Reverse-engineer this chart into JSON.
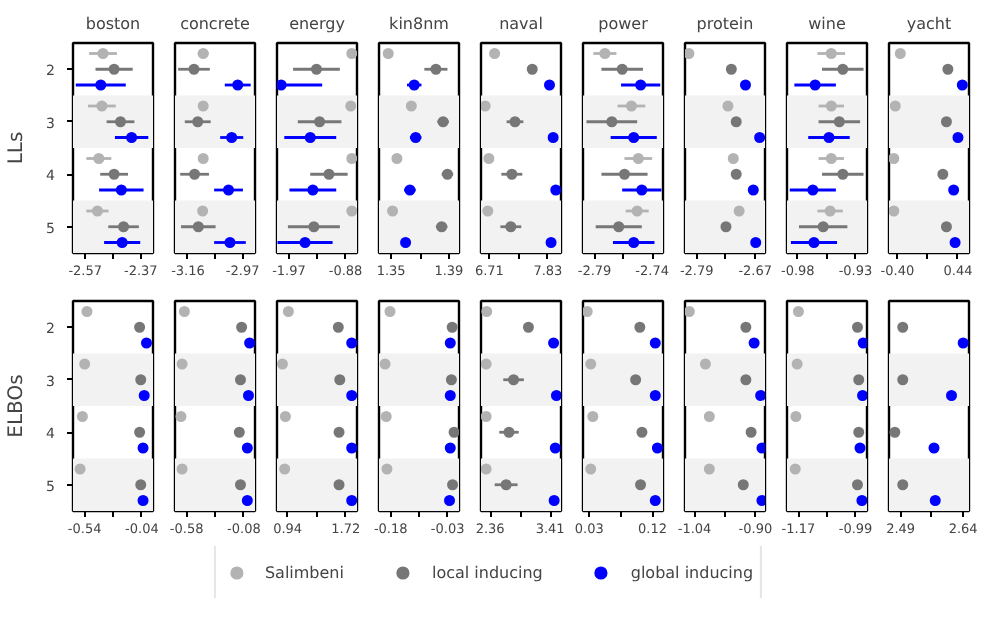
{
  "chart_data": [
    {
      "type": "scatter",
      "title": "boston",
      "ylabel": "LLs",
      "orientation": "horizontal",
      "categories": [
        "2",
        "3",
        "4",
        "5"
      ],
      "xlim": [
        -2.614,
        -2.326
      ],
      "xticks": [
        -2.57,
        {
          "value": -2.47,
          "label": null
        },
        -2.37
      ],
      "marker": "circle",
      "grid": false,
      "legend": "bottom",
      "bands": [
        {
          "axis": "y",
          "from": "3",
          "to": "3",
          "color": "#f2f2f2"
        },
        {
          "axis": "y",
          "from": "5",
          "to": "5",
          "color": "#f2f2f2"
        }
      ],
      "series": [
        {
          "name": "Salimbeni",
          "color": "#b3b3b3",
          "values": [
            -2.506,
            -2.51,
            -2.521,
            -2.526
          ],
          "errors": [
            0.05,
            0.05,
            0.045,
            0.04
          ]
        },
        {
          "name": "local inducing",
          "color": "#777777",
          "values": [
            -2.466,
            -2.443,
            -2.466,
            -2.432
          ],
          "errors": [
            0.067,
            0.05,
            0.05,
            0.055
          ]
        },
        {
          "name": "global inducing",
          "color": "#0000ff",
          "values": [
            -2.514,
            -2.403,
            -2.44,
            -2.437
          ],
          "errors": [
            0.09,
            0.06,
            0.08,
            0.065
          ]
        }
      ]
    },
    {
      "type": "scatter",
      "title": "concrete",
      "orientation": "horizontal",
      "categories": [
        "2",
        "3",
        "4",
        "5"
      ],
      "tick_labels": "x",
      "xlim": [
        -3.205,
        -2.927
      ],
      "xticks": [
        -3.16,
        {
          "value": -3.065,
          "label": null
        },
        -2.97
      ],
      "marker": "circle",
      "grid": false,
      "bands": [
        {
          "axis": "y",
          "from": "3",
          "to": "3",
          "color": "#f2f2f2"
        },
        {
          "axis": "y",
          "from": "5",
          "to": "5",
          "color": "#f2f2f2"
        }
      ],
      "series": [
        {
          "color": "#b3b3b3",
          "values": [
            -3.107,
            -3.107,
            -3.107,
            -3.109
          ],
          "errors": [
            0.019,
            null,
            null,
            null
          ]
        },
        {
          "color": "#777777",
          "values": [
            -3.139,
            -3.126,
            -3.137,
            -3.124
          ],
          "errors": [
            0.055,
            0.045,
            0.05,
            0.06
          ]
        },
        {
          "color": "#0000ff",
          "values": [
            -2.987,
            -3.008,
            -3.019,
            -3.014
          ],
          "errors": [
            0.045,
            0.04,
            0.05,
            0.055
          ]
        }
      ]
    },
    {
      "type": "scatter",
      "title": "energy",
      "orientation": "horizontal",
      "categories": [
        "2",
        "3",
        "4",
        "5"
      ],
      "tick_labels": "x",
      "xlim": [
        -2.2,
        -0.66
      ],
      "xticks": [
        -1.97,
        {
          "value": -1.425,
          "label": null
        },
        -0.88
      ],
      "marker": "circle",
      "grid": false,
      "bands": [
        {
          "axis": "y",
          "from": "3",
          "to": "3",
          "color": "#f2f2f2"
        },
        {
          "axis": "y",
          "from": "5",
          "to": "5",
          "color": "#f2f2f2"
        }
      ],
      "series": [
        {
          "color": "#b3b3b3",
          "values": [
            -0.76,
            -0.78,
            -0.76,
            -0.76
          ]
        },
        {
          "color": "#777777",
          "values": [
            -1.44,
            -1.38,
            -1.2,
            -1.49
          ],
          "errors": [
            0.45,
            0.42,
            0.36,
            0.5
          ]
        },
        {
          "color": "#0000ff",
          "values": [
            -2.12,
            -1.56,
            -1.51,
            -1.66
          ],
          "errors": [
            [
              -2.2,
              -1.33
            ],
            0.5,
            0.45,
            0.53
          ]
        }
      ]
    },
    {
      "type": "scatter",
      "title": "kin8nm",
      "orientation": "horizontal",
      "categories": [
        "2",
        "3",
        "4",
        "5"
      ],
      "tick_labels": "x",
      "xlim": [
        1.3416,
        1.397
      ],
      "xticks": [
        1.35,
        {
          "value": 1.37,
          "label": null
        },
        1.39
      ],
      "marker": "circle",
      "grid": false,
      "bands": [
        {
          "axis": "y",
          "from": "3",
          "to": "3",
          "color": "#f2f2f2"
        },
        {
          "axis": "y",
          "from": "5",
          "to": "5",
          "color": "#f2f2f2"
        }
      ],
      "series": [
        {
          "color": "#b3b3b3",
          "values": [
            1.348,
            1.364,
            1.354,
            1.351
          ],
          "errors": [
            null,
            0.003,
            0.003,
            0.002
          ]
        },
        {
          "color": "#777777",
          "values": [
            1.381,
            1.386,
            1.389,
            1.385
          ],
          "errors": [
            0.008,
            0.004,
            0.004,
            0.004
          ]
        },
        {
          "color": "#0000ff",
          "values": [
            1.366,
            1.367,
            1.363,
            1.36
          ],
          "errors": [
            0.005,
            0.004,
            0.004,
            0.003
          ]
        }
      ]
    },
    {
      "type": "scatter",
      "title": "naval",
      "orientation": "horizontal",
      "categories": [
        "2",
        "3",
        "4",
        "5"
      ],
      "tick_labels": "x",
      "xlim": [
        6.55,
        8.08
      ],
      "xticks": [
        6.71,
        {
          "value": 7.27,
          "label": null
        },
        7.83
      ],
      "marker": "circle",
      "grid": false,
      "bands": [
        {
          "axis": "y",
          "from": "3",
          "to": "3",
          "color": "#f2f2f2"
        },
        {
          "axis": "y",
          "from": "5",
          "to": "5",
          "color": "#f2f2f2"
        }
      ],
      "series": [
        {
          "color": "#b3b3b3",
          "values": [
            6.81,
            6.63,
            6.7,
            6.68
          ]
        },
        {
          "color": "#777777",
          "values": [
            7.53,
            7.2,
            7.14,
            7.12
          ],
          "errors": [
            null,
            0.16,
            0.2,
            0.2
          ]
        },
        {
          "color": "#0000ff",
          "values": [
            7.86,
            7.93,
            7.98,
            7.89
          ]
        }
      ]
    },
    {
      "type": "scatter",
      "title": "power",
      "orientation": "horizontal",
      "categories": [
        "2",
        "3",
        "4",
        "5"
      ],
      "tick_labels": "x",
      "xlim": [
        -2.8,
        -2.7306
      ],
      "xticks": [
        -2.79,
        {
          "value": -2.765,
          "label": null
        },
        -2.74
      ],
      "marker": "circle",
      "grid": false,
      "bands": [
        {
          "axis": "y",
          "from": "3",
          "to": "3",
          "color": "#f2f2f2"
        },
        {
          "axis": "y",
          "from": "5",
          "to": "5",
          "color": "#f2f2f2"
        }
      ],
      "series": [
        {
          "color": "#b3b3b3",
          "values": [
            -2.781,
            -2.758,
            -2.752,
            -2.753
          ],
          "errors": [
            0.01,
            0.012,
            0.012,
            0.01
          ]
        },
        {
          "color": "#777777",
          "values": [
            -2.766,
            -2.775,
            -2.764,
            -2.769
          ],
          "errors": [
            0.018,
            0.022,
            0.02,
            0.02
          ]
        },
        {
          "color": "#0000ff",
          "values": [
            -2.75,
            -2.756,
            -2.749,
            -2.756
          ],
          "errors": [
            0.017,
            0.02,
            0.017,
            0.018
          ]
        }
      ]
    },
    {
      "type": "scatter",
      "title": "protein",
      "orientation": "horizontal",
      "categories": [
        "2",
        "3",
        "4",
        "5"
      ],
      "tick_labels": "x",
      "xlim": [
        -2.814,
        -2.65
      ],
      "xticks": [
        -2.79,
        {
          "value": -2.73,
          "label": null
        },
        -2.67
      ],
      "marker": "circle",
      "grid": false,
      "bands": [
        {
          "axis": "y",
          "from": "3",
          "to": "3",
          "color": "#f2f2f2"
        },
        {
          "axis": "y",
          "from": "5",
          "to": "5",
          "color": "#f2f2f2"
        }
      ],
      "series": [
        {
          "color": "#b3b3b3",
          "values": [
            -2.806,
            -2.726,
            -2.715,
            -2.703
          ]
        },
        {
          "color": "#777777",
          "values": [
            -2.719,
            -2.709,
            -2.709,
            -2.73
          ],
          "errors": [
            null,
            null,
            null,
            0.01
          ]
        },
        {
          "color": "#0000ff",
          "values": [
            -2.69,
            -2.661,
            -2.674,
            -2.669
          ],
          "errors": [
            null,
            null,
            0.008,
            0.008
          ]
        }
      ]
    },
    {
      "type": "scatter",
      "title": "wine",
      "orientation": "horizontal",
      "categories": [
        "2",
        "3",
        "4",
        "5"
      ],
      "tick_labels": "x",
      "xlim": [
        -0.9894,
        -0.92
      ],
      "xticks": [
        -0.98,
        {
          "value": -0.955,
          "label": null
        },
        -0.93
      ],
      "marker": "circle",
      "grid": false,
      "bands": [
        {
          "axis": "y",
          "from": "3",
          "to": "3",
          "color": "#f2f2f2"
        },
        {
          "axis": "y",
          "from": "5",
          "to": "5",
          "color": "#f2f2f2"
        }
      ],
      "series": [
        {
          "color": "#b3b3b3",
          "values": [
            -0.951,
            -0.951,
            -0.951,
            -0.952
          ],
          "errors": [
            0.012,
            0.011,
            0.011,
            0.011
          ]
        },
        {
          "color": "#777777",
          "values": [
            -0.941,
            -0.944,
            -0.941,
            -0.958
          ],
          "errors": [
            0.018,
            0.018,
            0.018,
            0.021
          ]
        },
        {
          "color": "#0000ff",
          "values": [
            -0.965,
            -0.953,
            -0.967,
            -0.966
          ],
          "errors": [
            0.018,
            0.018,
            0.02,
            0.02
          ]
        }
      ]
    },
    {
      "type": "scatter",
      "title": "yacht",
      "orientation": "horizontal",
      "categories": [
        "2",
        "3",
        "4",
        "5"
      ],
      "tick_labels": "x",
      "xlim": [
        -0.517,
        0.593
      ],
      "xticks": [
        {
          "value": -0.4,
          "label": "-0.40"
        },
        {
          "value": 0.02,
          "label": null
        },
        0.44
      ],
      "marker": "circle",
      "grid": false,
      "bands": [
        {
          "axis": "y",
          "from": "3",
          "to": "3",
          "color": "#f2f2f2"
        },
        {
          "axis": "y",
          "from": "5",
          "to": "5",
          "color": "#f2f2f2"
        }
      ],
      "series": [
        {
          "color": "#b3b3b3",
          "values": [
            -0.36,
            -0.43,
            -0.45,
            -0.45
          ]
        },
        {
          "color": "#777777",
          "values": [
            0.3,
            0.28,
            0.23,
            0.28
          ]
        },
        {
          "color": "#0000ff",
          "values": [
            0.5,
            0.44,
            0.38,
            0.4
          ]
        }
      ]
    },
    {
      "type": "scatter",
      "ylabel": "ELBOs",
      "orientation": "horizontal",
      "categories": [
        "2",
        "3",
        "4",
        "5"
      ],
      "xlim": [
        -0.642,
        0.057
      ],
      "xticks": [
        -0.54,
        {
          "value": -0.29,
          "label": null
        },
        -0.04
      ],
      "marker": "circle",
      "grid": false,
      "bands": [
        {
          "axis": "y",
          "from": "3",
          "to": "3",
          "color": "#f2f2f2"
        },
        {
          "axis": "y",
          "from": "5",
          "to": "5",
          "color": "#f2f2f2"
        }
      ],
      "series": [
        {
          "color": "#b3b3b3",
          "values": [
            -0.52,
            -0.54,
            -0.56,
            -0.58
          ]
        },
        {
          "color": "#777777",
          "values": [
            -0.06,
            -0.05,
            -0.06,
            -0.05
          ]
        },
        {
          "color": "#0000ff",
          "values": [
            0.0,
            -0.02,
            -0.03,
            -0.03
          ]
        }
      ]
    },
    {
      "type": "scatter",
      "orientation": "horizontal",
      "categories": [
        "2",
        "3",
        "4",
        "5"
      ],
      "tick_labels": "x",
      "xlim": [
        -0.682,
        0.017
      ],
      "xticks": [
        -0.58,
        {
          "value": -0.33,
          "label": null
        },
        -0.08
      ],
      "marker": "circle",
      "grid": false,
      "bands": [
        {
          "axis": "y",
          "from": "3",
          "to": "3",
          "color": "#f2f2f2"
        },
        {
          "axis": "y",
          "from": "5",
          "to": "5",
          "color": "#f2f2f2"
        }
      ],
      "series": [
        {
          "color": "#b3b3b3",
          "values": [
            -0.6,
            -0.62,
            -0.63,
            -0.62
          ]
        },
        {
          "color": "#777777",
          "values": [
            -0.1,
            -0.11,
            -0.12,
            -0.11
          ]
        },
        {
          "color": "#0000ff",
          "values": [
            -0.03,
            -0.04,
            -0.05,
            -0.05
          ]
        }
      ]
    },
    {
      "type": "scatter",
      "orientation": "horizontal",
      "categories": [
        "2",
        "3",
        "4",
        "5"
      ],
      "tick_labels": "x",
      "xlim": [
        0.797,
        1.871
      ],
      "xticks": [
        0.94,
        {
          "value": 1.33,
          "label": null
        },
        1.72
      ],
      "marker": "circle",
      "grid": false,
      "bands": [
        {
          "axis": "y",
          "from": "3",
          "to": "3",
          "color": "#f2f2f2"
        },
        {
          "axis": "y",
          "from": "5",
          "to": "5",
          "color": "#f2f2f2"
        }
      ],
      "series": [
        {
          "color": "#b3b3b3",
          "values": [
            0.95,
            0.87,
            0.91,
            0.9
          ]
        },
        {
          "color": "#777777",
          "values": [
            1.62,
            1.64,
            1.63,
            1.63
          ]
        },
        {
          "color": "#0000ff",
          "values": [
            1.8,
            1.8,
            1.8,
            1.8
          ]
        }
      ]
    },
    {
      "type": "scatter",
      "orientation": "horizontal",
      "categories": [
        "2",
        "3",
        "4",
        "5"
      ],
      "tick_labels": "x",
      "xlim": [
        -0.211,
        0.0
      ],
      "xticks": [
        -0.18,
        {
          "value": -0.105,
          "label": null
        },
        -0.03
      ],
      "marker": "circle",
      "grid": false,
      "bands": [
        {
          "axis": "y",
          "from": "3",
          "to": "3",
          "color": "#f2f2f2"
        },
        {
          "axis": "y",
          "from": "5",
          "to": "5",
          "color": "#f2f2f2"
        }
      ],
      "series": [
        {
          "color": "#b3b3b3",
          "values": [
            -0.182,
            -0.195,
            -0.192,
            -0.19
          ]
        },
        {
          "color": "#777777",
          "values": [
            -0.018,
            -0.02,
            -0.013,
            -0.017
          ]
        },
        {
          "color": "#0000ff",
          "values": [
            -0.023,
            -0.023,
            -0.023,
            -0.025
          ]
        }
      ]
    },
    {
      "type": "scatter",
      "orientation": "horizontal",
      "categories": [
        "2",
        "3",
        "4",
        "5"
      ],
      "tick_labels": "x",
      "xlim": [
        2.2,
        3.6
      ],
      "xticks": [
        2.36,
        {
          "value": 2.885,
          "label": null
        },
        3.41
      ],
      "marker": "circle",
      "grid": false,
      "bands": [
        {
          "axis": "y",
          "from": "3",
          "to": "3",
          "color": "#f2f2f2"
        },
        {
          "axis": "y",
          "from": "5",
          "to": "5",
          "color": "#f2f2f2"
        }
      ],
      "series": [
        {
          "color": "#b3b3b3",
          "values": [
            2.3,
            2.29,
            2.29,
            2.29
          ]
        },
        {
          "color": "#777777",
          "values": [
            3.03,
            2.77,
            2.69,
            2.64
          ],
          "errors": [
            null,
            0.18,
            0.17,
            0.2
          ]
        },
        {
          "color": "#0000ff",
          "values": [
            3.47,
            3.52,
            3.5,
            3.48
          ]
        }
      ]
    },
    {
      "type": "scatter",
      "orientation": "horizontal",
      "categories": [
        "2",
        "3",
        "4",
        "5"
      ],
      "tick_labels": "x",
      "xlim": [
        0.021,
        0.135
      ],
      "xticks": [
        0.03,
        {
          "value": 0.075,
          "label": null
        },
        0.12
      ],
      "marker": "circle",
      "grid": false,
      "bands": [
        {
          "axis": "y",
          "from": "3",
          "to": "3",
          "color": "#f2f2f2"
        },
        {
          "axis": "y",
          "from": "5",
          "to": "5",
          "color": "#f2f2f2"
        }
      ],
      "series": [
        {
          "color": "#b3b3b3",
          "values": [
            0.027,
            0.032,
            0.035,
            0.032
          ]
        },
        {
          "color": "#777777",
          "values": [
            0.102,
            0.096,
            0.105,
            0.103
          ]
        },
        {
          "color": "#0000ff",
          "values": [
            0.124,
            0.124,
            0.127,
            0.124
          ]
        }
      ]
    },
    {
      "type": "scatter",
      "orientation": "horizontal",
      "categories": [
        "2",
        "3",
        "4",
        "5"
      ],
      "tick_labels": "x",
      "xlim": [
        -1.062,
        -0.878
      ],
      "xticks": [
        -1.04,
        {
          "value": -0.97,
          "label": null
        },
        {
          "value": -0.9,
          "label": "-0.90"
        }
      ],
      "marker": "circle",
      "grid": false,
      "bands": [
        {
          "axis": "y",
          "from": "3",
          "to": "3",
          "color": "#f2f2f2"
        },
        {
          "axis": "y",
          "from": "5",
          "to": "5",
          "color": "#f2f2f2"
        }
      ],
      "series": [
        {
          "color": "#b3b3b3",
          "values": [
            -1.052,
            -1.015,
            -1.006,
            -1.006
          ]
        },
        {
          "color": "#777777",
          "values": [
            -0.922,
            -0.922,
            -0.91,
            -0.928
          ]
        },
        {
          "color": "#0000ff",
          "values": [
            -0.903,
            -0.888,
            -0.885,
            -0.885
          ]
        }
      ]
    },
    {
      "type": "scatter",
      "orientation": "horizontal",
      "categories": [
        "2",
        "3",
        "4",
        "5"
      ],
      "tick_labels": "x",
      "xlim": [
        -1.206,
        -0.954
      ],
      "xticks": [
        -1.17,
        {
          "value": -1.08,
          "label": null
        },
        -0.99
      ],
      "marker": "circle",
      "grid": false,
      "bands": [
        {
          "axis": "y",
          "from": "3",
          "to": "3",
          "color": "#f2f2f2"
        },
        {
          "axis": "y",
          "from": "5",
          "to": "5",
          "color": "#f2f2f2"
        }
      ],
      "series": [
        {
          "color": "#b3b3b3",
          "values": [
            -1.17,
            -1.174,
            -1.178,
            -1.18
          ]
        },
        {
          "color": "#777777",
          "values": [
            -0.984,
            -0.98,
            -0.98,
            -0.984
          ]
        },
        {
          "color": "#0000ff",
          "values": [
            -0.966,
            -0.968,
            -0.976,
            -0.97
          ]
        }
      ]
    },
    {
      "type": "scatter",
      "orientation": "horizontal",
      "categories": [
        "2",
        "3",
        "4",
        "5"
      ],
      "tick_labels": "x",
      "xlim": [
        2.462,
        2.654
      ],
      "xticks": [
        2.49,
        {
          "value": 2.565,
          "label": null
        },
        2.64
      ],
      "marker": "circle",
      "grid": false,
      "bands": [
        {
          "axis": "y",
          "from": "3",
          "to": "3",
          "color": "#f2f2f2"
        },
        {
          "axis": "y",
          "from": "5",
          "to": "5",
          "color": "#f2f2f2"
        }
      ],
      "series": [
        {
          "color": "#b3b3b3",
          "values": [
            null,
            null,
            null,
            null
          ]
        },
        {
          "color": "#777777",
          "values": [
            2.495,
            2.495,
            2.476,
            2.495
          ]
        },
        {
          "color": "#0000ff",
          "values": [
            2.64,
            2.612,
            2.57,
            2.573
          ]
        }
      ]
    }
  ]
}
